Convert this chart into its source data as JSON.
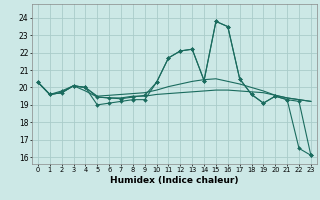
{
  "xlabel": "Humidex (Indice chaleur)",
  "xlim": [
    -0.5,
    23.5
  ],
  "ylim": [
    15.6,
    24.8
  ],
  "yticks": [
    16,
    17,
    18,
    19,
    20,
    21,
    22,
    23,
    24
  ],
  "xticks": [
    0,
    1,
    2,
    3,
    4,
    5,
    6,
    7,
    8,
    9,
    10,
    11,
    12,
    13,
    14,
    15,
    16,
    17,
    18,
    19,
    20,
    21,
    22,
    23
  ],
  "background_color": "#cce8e6",
  "grid_color": "#aaccca",
  "line_color": "#1a6b5e",
  "lines": [
    [
      20.3,
      19.6,
      19.8,
      20.1,
      20.0,
      19.0,
      19.1,
      19.2,
      19.3,
      19.3,
      20.3,
      21.7,
      22.1,
      22.2,
      20.4,
      23.8,
      23.5,
      20.5,
      19.6,
      19.1,
      19.5,
      19.3,
      16.5,
      16.1
    ],
    [
      20.3,
      19.6,
      19.7,
      20.1,
      19.8,
      19.45,
      19.4,
      19.4,
      19.5,
      19.5,
      19.6,
      19.65,
      19.7,
      19.75,
      19.8,
      19.85,
      19.85,
      19.8,
      19.75,
      19.7,
      19.55,
      19.4,
      19.3,
      19.2
    ],
    [
      20.3,
      19.6,
      19.7,
      20.1,
      20.0,
      19.5,
      19.55,
      19.6,
      19.65,
      19.7,
      19.85,
      20.05,
      20.2,
      20.35,
      20.45,
      20.5,
      20.35,
      20.2,
      20.0,
      19.8,
      19.55,
      19.4,
      19.3,
      19.2
    ],
    [
      20.3,
      19.6,
      19.7,
      20.1,
      20.0,
      19.45,
      19.4,
      19.35,
      19.45,
      19.55,
      20.3,
      21.7,
      22.1,
      22.2,
      20.4,
      23.8,
      23.5,
      20.5,
      19.6,
      19.1,
      19.5,
      19.3,
      19.2,
      16.1
    ]
  ],
  "has_markers": [
    true,
    false,
    false,
    true
  ]
}
